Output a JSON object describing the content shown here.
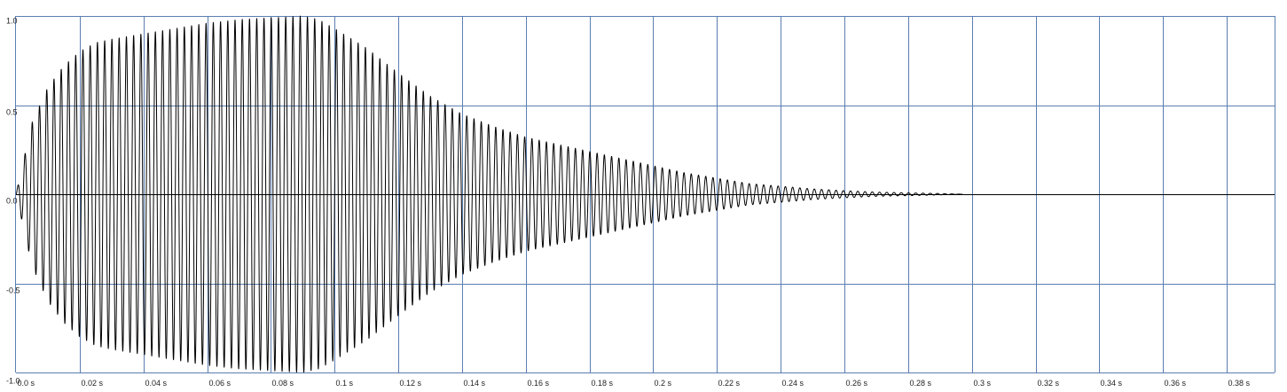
{
  "chart_data": {
    "type": "line",
    "title": "",
    "xlabel": "",
    "ylabel": "",
    "xlim": [
      0.0,
      0.395
    ],
    "ylim": [
      -1.0,
      1.0
    ],
    "grid": true,
    "legend": "none",
    "colors": {
      "grid": "#5b7eb1",
      "waveform": "#000000",
      "zero_line": "#000000",
      "background": "#ffffff"
    },
    "x_ticks": [
      {
        "value": 0.0,
        "label": "0.0 s"
      },
      {
        "value": 0.02,
        "label": "0.02 s"
      },
      {
        "value": 0.04,
        "label": "0.04 s"
      },
      {
        "value": 0.06,
        "label": "0.06 s"
      },
      {
        "value": 0.08,
        "label": "0.08 s"
      },
      {
        "value": 0.1,
        "label": "0.1 s"
      },
      {
        "value": 0.12,
        "label": "0.12 s"
      },
      {
        "value": 0.14,
        "label": "0.14 s"
      },
      {
        "value": 0.16,
        "label": "0.16 s"
      },
      {
        "value": 0.18,
        "label": "0.18 s"
      },
      {
        "value": 0.2,
        "label": "0.2 s"
      },
      {
        "value": 0.22,
        "label": "0.22 s"
      },
      {
        "value": 0.24,
        "label": "0.24 s"
      },
      {
        "value": 0.26,
        "label": "0.26 s"
      },
      {
        "value": 0.28,
        "label": "0.28 s"
      },
      {
        "value": 0.3,
        "label": "0.3 s"
      },
      {
        "value": 0.32,
        "label": "0.32 s"
      },
      {
        "value": 0.34,
        "label": "0.34 s"
      },
      {
        "value": 0.36,
        "label": "0.36 s"
      },
      {
        "value": 0.38,
        "label": "0.38 s"
      }
    ],
    "y_ticks": [
      {
        "value": 1.0,
        "label": "1.0"
      },
      {
        "value": 0.5,
        "label": "0.5"
      },
      {
        "value": 0.0,
        "label": "0.0"
      },
      {
        "value": -0.5,
        "label": "-0.5"
      },
      {
        "value": -1.0,
        "label": "-1.0"
      }
    ],
    "series": [
      {
        "oscillation_hz": 440,
        "signal_end_s": 0.297,
        "envelope": {
          "x": [
            0.0,
            0.005,
            0.01,
            0.015,
            0.02,
            0.025,
            0.03,
            0.04,
            0.05,
            0.06,
            0.07,
            0.08,
            0.09,
            0.095,
            0.1,
            0.11,
            0.12,
            0.13,
            0.14,
            0.15,
            0.16,
            0.17,
            0.18,
            0.19,
            0.2,
            0.21,
            0.22,
            0.23,
            0.24,
            0.25,
            0.26,
            0.27,
            0.28,
            0.29,
            0.297
          ],
          "y": [
            0.0,
            0.4,
            0.6,
            0.72,
            0.8,
            0.85,
            0.87,
            0.9,
            0.93,
            0.96,
            0.98,
            0.99,
            1.0,
            0.98,
            0.93,
            0.82,
            0.68,
            0.55,
            0.45,
            0.38,
            0.32,
            0.28,
            0.24,
            0.2,
            0.16,
            0.12,
            0.09,
            0.06,
            0.045,
            0.03,
            0.02,
            0.012,
            0.008,
            0.004,
            0.0
          ]
        }
      }
    ]
  }
}
